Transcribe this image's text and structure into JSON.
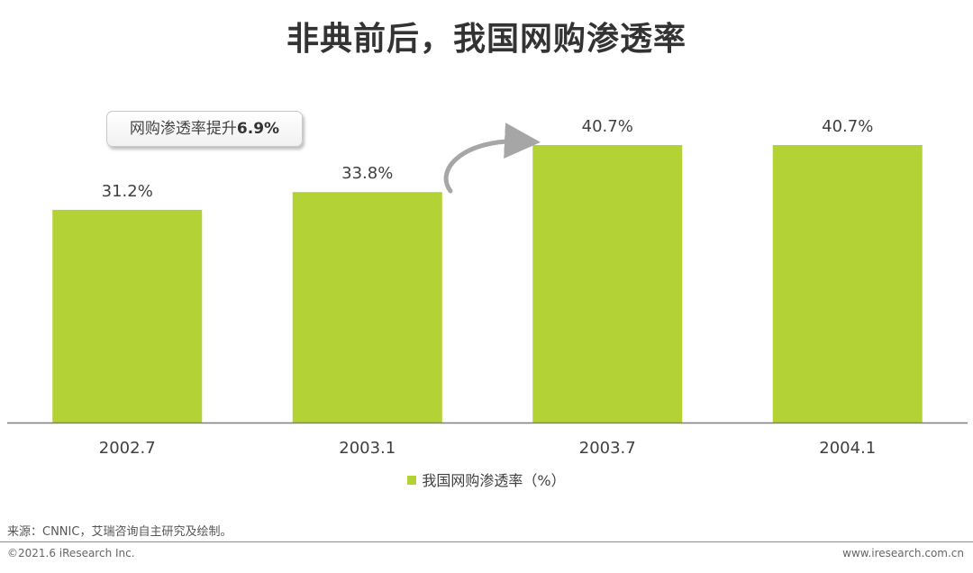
{
  "page": {
    "title": "非典前后，我国网购渗透率",
    "callout_prefix": "网购渗透率提升",
    "callout_value": "6.9%",
    "source": "来源：CNNIC，艾瑞咨询自主研究及绘制。",
    "footer_left": "©2021.6 iResearch Inc.",
    "footer_right": "www.iresearch.com.cn"
  },
  "colors": {
    "bar": "#b2d235",
    "axis": "#7f7f7f"
  },
  "chart_data": {
    "type": "bar",
    "categories": [
      "2002.7",
      "2003.1",
      "2003.7",
      "2004.1"
    ],
    "series": [
      {
        "name": "我国网购渗透率（%）",
        "values": [
          31.2,
          33.8,
          40.7,
          40.7
        ]
      }
    ],
    "data_labels": [
      "31.2%",
      "33.8%",
      "40.7%",
      "40.7%"
    ],
    "ylim": [
      0,
      50
    ],
    "legend_position": "bottom",
    "grid": false
  }
}
